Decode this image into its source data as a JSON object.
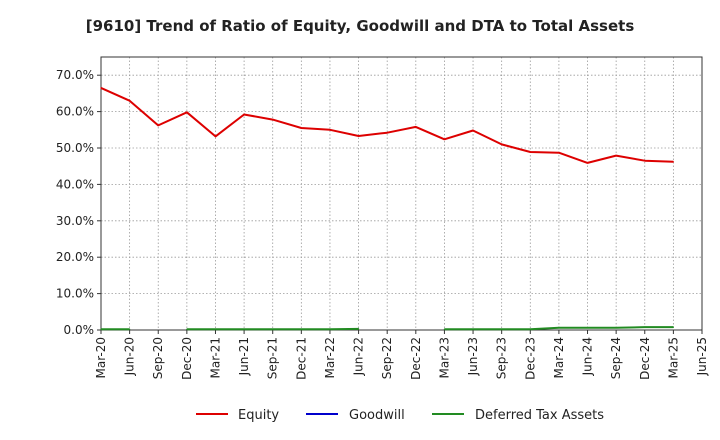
{
  "chart_data": {
    "type": "line",
    "title": "[9610]  Trend of Ratio of Equity, Goodwill and DTA to Total Assets",
    "xlabel": "",
    "ylabel": "",
    "ylim": [
      0,
      75
    ],
    "yticks": [
      0,
      10,
      20,
      30,
      40,
      50,
      60,
      70
    ],
    "ytick_labels": [
      "0.0%",
      "10.0%",
      "20.0%",
      "30.0%",
      "40.0%",
      "50.0%",
      "60.0%",
      "70.0%"
    ],
    "x_ticks": [
      "Mar-20",
      "Jun-20",
      "Sep-20",
      "Dec-20",
      "Mar-21",
      "Jun-21",
      "Sep-21",
      "Dec-21",
      "Mar-22",
      "Jun-22",
      "Sep-22",
      "Dec-22",
      "Mar-23",
      "Jun-23",
      "Sep-23",
      "Dec-23",
      "Mar-24",
      "Jun-24",
      "Sep-24",
      "Dec-24",
      "Mar-25",
      "Jun-25"
    ],
    "grid": true,
    "legend_position": "bottom",
    "series": [
      {
        "name": "Equity",
        "color": "#dd0000",
        "values": [
          66.5,
          63.0,
          56.2,
          59.8,
          53.2,
          59.2,
          57.8,
          55.5,
          55.0,
          53.3,
          54.2,
          55.8,
          52.4,
          54.8,
          51.0,
          48.9,
          48.7,
          45.9,
          47.9,
          46.5,
          46.2,
          null
        ]
      },
      {
        "name": "Goodwill",
        "color": "#0000cc",
        "values": [
          null,
          null,
          null,
          null,
          null,
          null,
          null,
          null,
          null,
          null,
          null,
          null,
          null,
          null,
          null,
          null,
          null,
          null,
          null,
          null,
          null,
          null
        ]
      },
      {
        "name": "Deferred Tax Assets",
        "color": "#228B22",
        "values": [
          0.2,
          0.2,
          null,
          0.2,
          0.2,
          0.2,
          0.2,
          0.2,
          0.2,
          0.3,
          null,
          null,
          0.2,
          0.2,
          0.2,
          0.2,
          0.6,
          0.6,
          0.6,
          0.8,
          0.8,
          null
        ]
      }
    ]
  }
}
